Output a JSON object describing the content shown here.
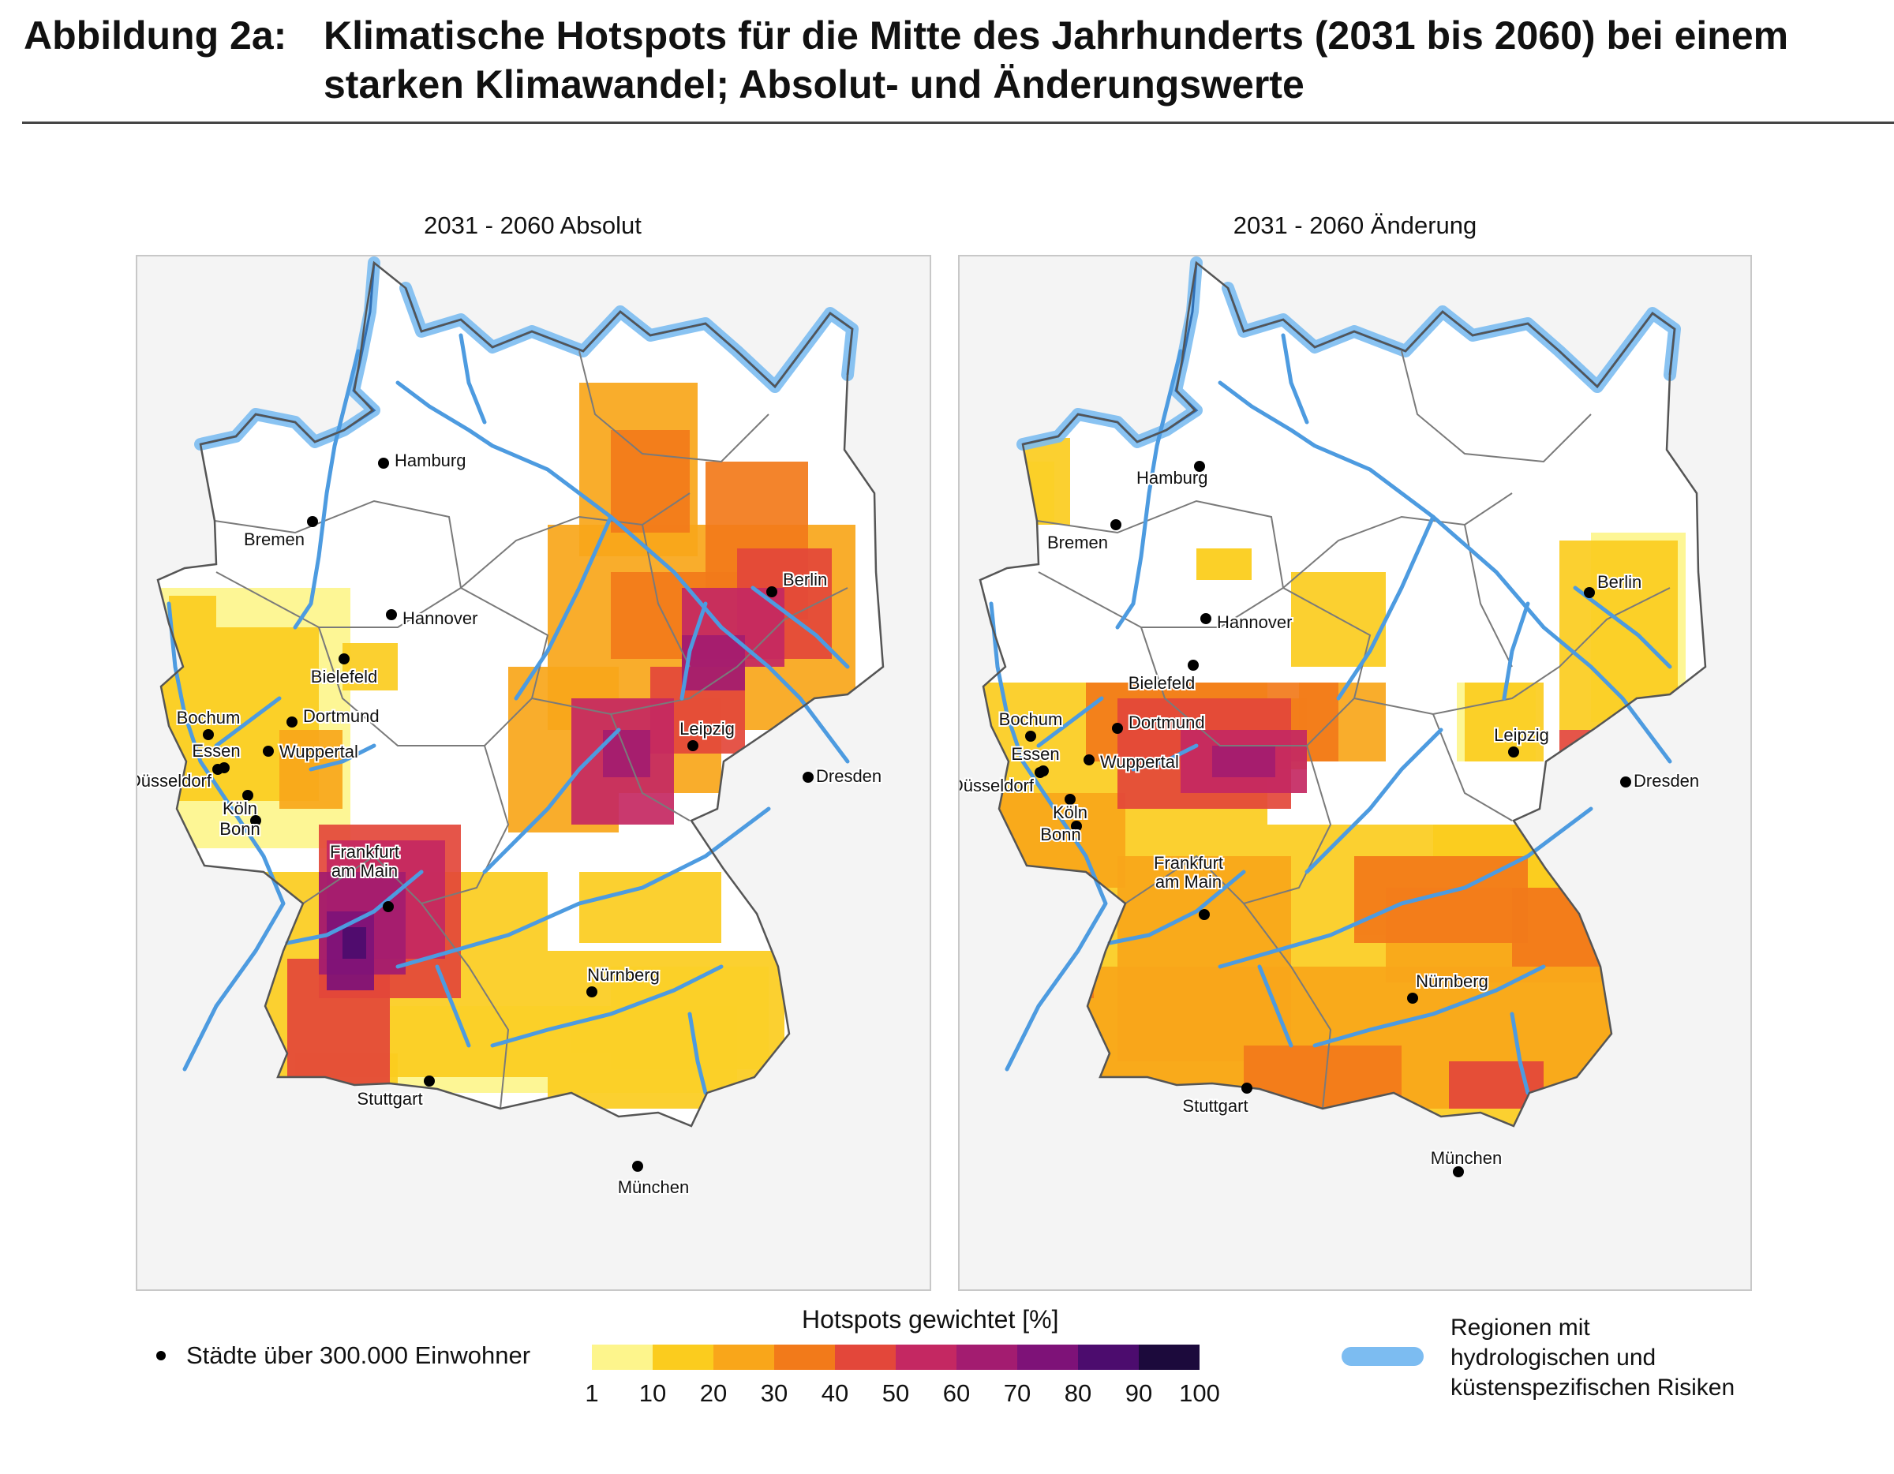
{
  "figure": {
    "label": "Abbildung 2a:",
    "title_line1": "Klimatische Hotspots für die Mitte des Jahrhunderts (2031 bis 2060) bei einem",
    "title_line2": "starken Klimawandel; Absolut- und Änderungswerte"
  },
  "panels": [
    {
      "title": "2031 - 2060 Absolut"
    },
    {
      "title": "2031 - 2060 Änderung"
    }
  ],
  "cities": [
    "Hamburg",
    "Bremen",
    "Hannover",
    "Berlin",
    "Bielefeld",
    "Bochum",
    "Dortmund",
    "Essen",
    "Wuppertal",
    "Düsseldorf",
    "Köln",
    "Bonn",
    "Leipzig",
    "Dresden",
    "Frankfurt am Main",
    "Nürnberg",
    "Stuttgart",
    "München"
  ],
  "legend": {
    "cities_label": "Städte über 300.000 Einwohner",
    "scale_title": "Hotspots gewichtet [%]",
    "scale_ticks": [
      "1",
      "10",
      "20",
      "30",
      "40",
      "50",
      "60",
      "70",
      "80",
      "90",
      "100"
    ],
    "scale_colors": [
      "#fdf58c",
      "#fbcc1e",
      "#f9a61a",
      "#f27a1a",
      "#e3473a",
      "#c42862",
      "#a31c70",
      "#7e1278",
      "#4c0c6e",
      "#1c0a3c"
    ],
    "hydro_line1": "Regionen mit",
    "hydro_line2": "hydrologischen und",
    "hydro_line3": "küstenspezifischen Risiken",
    "hydro_color": "#7cbcf1"
  },
  "colors": {
    "river": "#4d9be0",
    "coast": "#7cbcf1",
    "border": "#7a7a7a"
  }
}
